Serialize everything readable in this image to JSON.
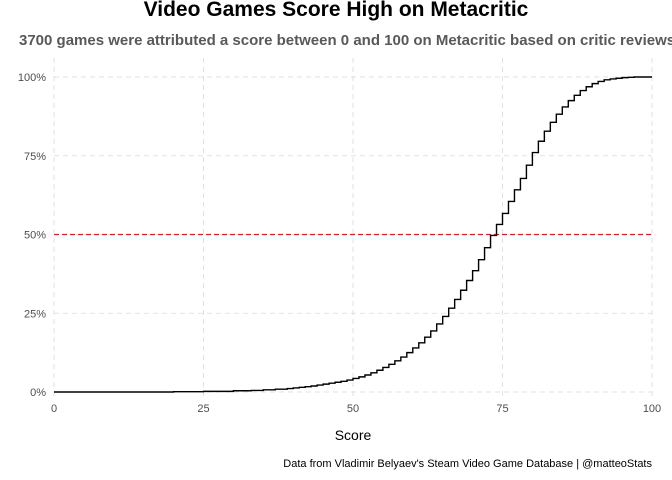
{
  "chart_data": {
    "type": "line",
    "step": true,
    "title": "Video Games Score High on Metacritic",
    "subtitle": "3700 games were attributed a score between 0 and 100 on Metacritic based on critic reviews",
    "xlabel": "Score",
    "ylabel": "",
    "xlim": [
      0,
      100
    ],
    "ylim": [
      0,
      1
    ],
    "x_ticks": [
      0,
      25,
      50,
      75,
      100
    ],
    "x_tick_labels": [
      "0",
      "25",
      "50",
      "75",
      "100"
    ],
    "y_ticks": [
      0,
      0.25,
      0.5,
      0.75,
      1
    ],
    "y_tick_labels": [
      "0%",
      "25%",
      "50%",
      "75%",
      "100%"
    ],
    "grid": true,
    "legend": "none",
    "caption": "Data from Vladimir Belyaev's Steam Video Game Database | @matteoStats",
    "reference_line": {
      "y": 0.5,
      "color": "#e41a1c",
      "style": "dashed"
    },
    "series": [
      {
        "color": "#000000",
        "x": [
          0,
          20,
          25,
          30,
          33,
          35,
          37,
          39,
          40,
          41,
          42,
          43,
          44,
          45,
          46,
          47,
          48,
          49,
          50,
          51,
          52,
          53,
          54,
          55,
          56,
          57,
          58,
          59,
          60,
          61,
          62,
          63,
          64,
          65,
          66,
          67,
          68,
          69,
          70,
          71,
          72,
          73,
          74,
          75,
          76,
          77,
          78,
          79,
          80,
          81,
          82,
          83,
          84,
          85,
          86,
          87,
          88,
          89,
          90,
          91,
          92,
          93,
          94,
          95,
          96,
          97,
          98,
          99,
          100
        ],
        "y": [
          0,
          0.001,
          0.002,
          0.004,
          0.005,
          0.007,
          0.009,
          0.011,
          0.013,
          0.015,
          0.017,
          0.019,
          0.022,
          0.025,
          0.028,
          0.031,
          0.034,
          0.038,
          0.043,
          0.048,
          0.054,
          0.061,
          0.069,
          0.078,
          0.088,
          0.099,
          0.111,
          0.125,
          0.14,
          0.156,
          0.174,
          0.194,
          0.216,
          0.24,
          0.266,
          0.294,
          0.323,
          0.354,
          0.385,
          0.42,
          0.458,
          0.497,
          0.532,
          0.567,
          0.605,
          0.642,
          0.678,
          0.72,
          0.76,
          0.796,
          0.828,
          0.856,
          0.882,
          0.905,
          0.925,
          0.942,
          0.957,
          0.969,
          0.979,
          0.986,
          0.991,
          0.994,
          0.996,
          0.998,
          0.999,
          1.0,
          1.0,
          1.0,
          1.0
        ]
      }
    ]
  },
  "colors": {
    "line": "#000000",
    "reference": "#e41a1c",
    "grid": "#d9d9d9",
    "subtitle": "#595959",
    "tick": "#4d4d4d",
    "text": "#000000"
  }
}
